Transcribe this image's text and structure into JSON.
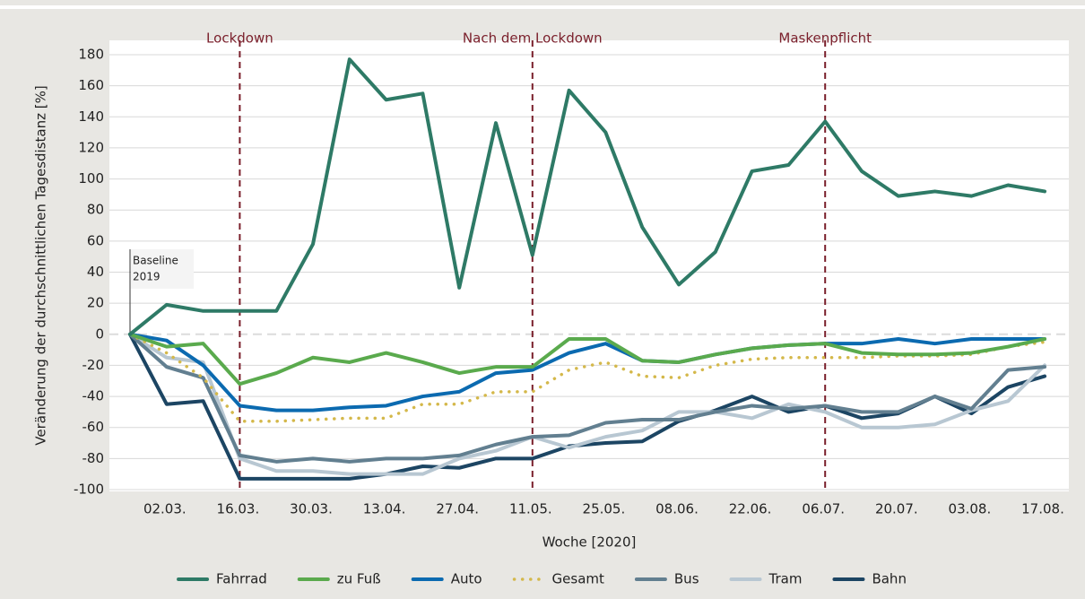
{
  "chart_data": {
    "type": "line",
    "xlabel": "Woche [2020]",
    "ylabel": "Veränderung der durchschnittlichen Tagesdistanz [%]",
    "categories": [
      null,
      "02.03.",
      null,
      "16.03.",
      null,
      "30.03.",
      null,
      "13.04.",
      null,
      "27.04.",
      null,
      "11.05.",
      null,
      "25.05.",
      null,
      "08.06.",
      null,
      "22.06.",
      null,
      "06.07.",
      null,
      "20.07.",
      null,
      "03.08.",
      null,
      "17.08."
    ],
    "ylim": [
      -100,
      180
    ],
    "yticks": [
      -100,
      -80,
      -60,
      -40,
      -20,
      0,
      20,
      40,
      60,
      80,
      100,
      120,
      140,
      160,
      180
    ],
    "grid": true,
    "legend": "bottom",
    "events": [
      {
        "label": "Lockdown",
        "index": 3
      },
      {
        "label": "Nach dem Lockdown",
        "index": 11
      },
      {
        "label": "Maskenpflicht",
        "index": 19
      }
    ],
    "baseline_label": [
      "Baseline",
      "2019"
    ],
    "series": [
      {
        "name": "Fahrrad",
        "color": "#2e7a66",
        "values": [
          0,
          19,
          15,
          15,
          15,
          58,
          177,
          151,
          155,
          30,
          136,
          51,
          157,
          130,
          69,
          32,
          53,
          105,
          109,
          137,
          105,
          89,
          92,
          89,
          96,
          92
        ]
      },
      {
        "name": "zu Fuß",
        "color": "#5aaa4d",
        "values": [
          0,
          -8,
          -6,
          -32,
          -25,
          -15,
          -18,
          -12,
          -18,
          -25,
          -21,
          -21,
          -3,
          -3,
          -17,
          -18,
          -13,
          -9,
          -7,
          -6,
          -12,
          -13,
          -13,
          -12,
          -8,
          -3
        ]
      },
      {
        "name": "Auto",
        "color": "#0b6ab0",
        "values": [
          0,
          -4,
          -20,
          -46,
          -49,
          -49,
          -47,
          -46,
          -40,
          -37,
          -25,
          -23,
          -12,
          -6,
          -17,
          -18,
          -13,
          -9,
          -7,
          -6,
          -6,
          -3,
          -6,
          -3,
          -3,
          -3
        ]
      },
      {
        "name": "Gesamt",
        "color": "#d4b84a",
        "dotted": true,
        "values": [
          0,
          -12,
          -28,
          -56,
          -56,
          -55,
          -54,
          -54,
          -45,
          -45,
          -37,
          -37,
          -23,
          -18,
          -27,
          -28,
          -20,
          -16,
          -15,
          -15,
          -15,
          -14,
          -14,
          -13,
          -8,
          -5
        ]
      },
      {
        "name": "Bus",
        "color": "#627f90",
        "values": [
          0,
          -21,
          -28,
          -78,
          -82,
          -80,
          -82,
          -80,
          -80,
          -78,
          -71,
          -66,
          -65,
          -57,
          -55,
          -55,
          -50,
          -46,
          -48,
          -46,
          -50,
          -50,
          -40,
          -48,
          -23,
          -21
        ]
      },
      {
        "name": "Tram",
        "color": "#b8c7d2",
        "values": [
          0,
          -15,
          -18,
          -80,
          -88,
          -88,
          -90,
          -90,
          -90,
          -80,
          -75,
          -66,
          -73,
          -66,
          -62,
          -50,
          -50,
          -54,
          -45,
          -50,
          -60,
          -60,
          -58,
          -49,
          -43,
          -20
        ]
      },
      {
        "name": "Bahn",
        "color": "#1c4563",
        "values": [
          0,
          -45,
          -43,
          -93,
          -93,
          -93,
          -93,
          -90,
          -85,
          -86,
          -80,
          -80,
          -72,
          -70,
          -69,
          -56,
          -49,
          -40,
          -50,
          -46,
          -54,
          -51,
          -40,
          -51,
          -34,
          -27
        ]
      }
    ]
  }
}
